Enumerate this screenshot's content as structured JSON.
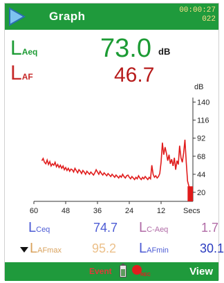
{
  "header": {
    "title": "Graph",
    "elapsed_time": "00:00:27",
    "run_number": "022",
    "bg_color": "#1f9a3c"
  },
  "readings": {
    "laeq": {
      "label": "L",
      "sub": "Aeq",
      "value": "73.0",
      "unit": "dB"
    },
    "laf": {
      "label": "L",
      "sub": "AF",
      "value": "46.7"
    }
  },
  "bottom": {
    "lceq": {
      "label": "L",
      "sub": "Ceq",
      "value": "74.7"
    },
    "lcaeq": {
      "label": "L",
      "sub": "C-Aeq",
      "value": "1.7"
    },
    "lafmax": {
      "label": "L",
      "sub": "AFmax",
      "value": "95.2"
    },
    "lafmin": {
      "label": "L",
      "sub": "AFmin",
      "value": "30.1"
    }
  },
  "footer": {
    "event_label": "Event",
    "record_label": "REC",
    "view_label": "View"
  },
  "chart_data": {
    "type": "line",
    "ylabel": "dB",
    "xlabel": "Secs",
    "x_ticks": [
      60,
      48,
      36,
      24,
      12
    ],
    "y_ticks": [
      140,
      116,
      92,
      68,
      44,
      20
    ],
    "xlim": [
      60,
      0
    ],
    "ylim": [
      8,
      146
    ],
    "series": [
      {
        "color": "#e01b1b",
        "x": [
          57,
          56.5,
          56,
          55.5,
          55,
          54.5,
          54,
          53.5,
          53,
          52.5,
          52,
          51.5,
          51,
          50.5,
          50,
          49.5,
          49,
          48.5,
          48,
          47.5,
          47,
          46.5,
          46,
          45.5,
          45,
          44.5,
          44,
          43.5,
          43,
          42.5,
          42,
          41.5,
          41,
          40.5,
          40,
          39.5,
          39,
          38.5,
          38,
          37.5,
          37,
          36.5,
          36,
          35.5,
          35,
          34.5,
          34,
          33.5,
          33,
          32.5,
          32,
          31.5,
          31,
          30.5,
          30,
          29.5,
          29,
          28.5,
          28,
          27.5,
          27,
          26.5,
          26,
          25.5,
          25,
          24.5,
          24,
          23.5,
          23,
          22.5,
          22,
          21.5,
          21,
          20.5,
          20,
          19.5,
          19,
          18.5,
          18,
          17.5,
          17,
          16.5,
          16,
          15.5,
          15,
          14.5,
          14,
          13.5,
          13,
          12.5,
          12,
          11.5,
          11,
          10.5,
          10,
          9.5,
          9,
          8.5,
          8,
          7.5,
          7,
          6.5,
          6,
          5.5,
          5,
          4.5,
          4,
          3.5,
          3,
          2.5,
          2,
          1.5,
          1,
          0.5,
          0
        ],
        "y": [
          62,
          65,
          60,
          58,
          63,
          57,
          61,
          55,
          58,
          56,
          60,
          54,
          57,
          53,
          56,
          52,
          55,
          50,
          53,
          49,
          52,
          48,
          51,
          50,
          47,
          52,
          49,
          46,
          50,
          48,
          45,
          49,
          47,
          44,
          48,
          46,
          44,
          47,
          45,
          43,
          46,
          50,
          47,
          44,
          48,
          45,
          43,
          46,
          44,
          42,
          45,
          43,
          41,
          44,
          42,
          40,
          43,
          41,
          39,
          42,
          40,
          44,
          41,
          39,
          42,
          43,
          40,
          38,
          41,
          39,
          37,
          40,
          38,
          42,
          39,
          37,
          40,
          38,
          41,
          39,
          37,
          40,
          38,
          56,
          44,
          40,
          42,
          39,
          41,
          45,
          60,
          86,
          70,
          80,
          72,
          62,
          70,
          58,
          64,
          55,
          66,
          50,
          62,
          57,
          82,
          66,
          60,
          72,
          90,
          60,
          35,
          28,
          26,
          25,
          22
        ]
      }
    ]
  }
}
